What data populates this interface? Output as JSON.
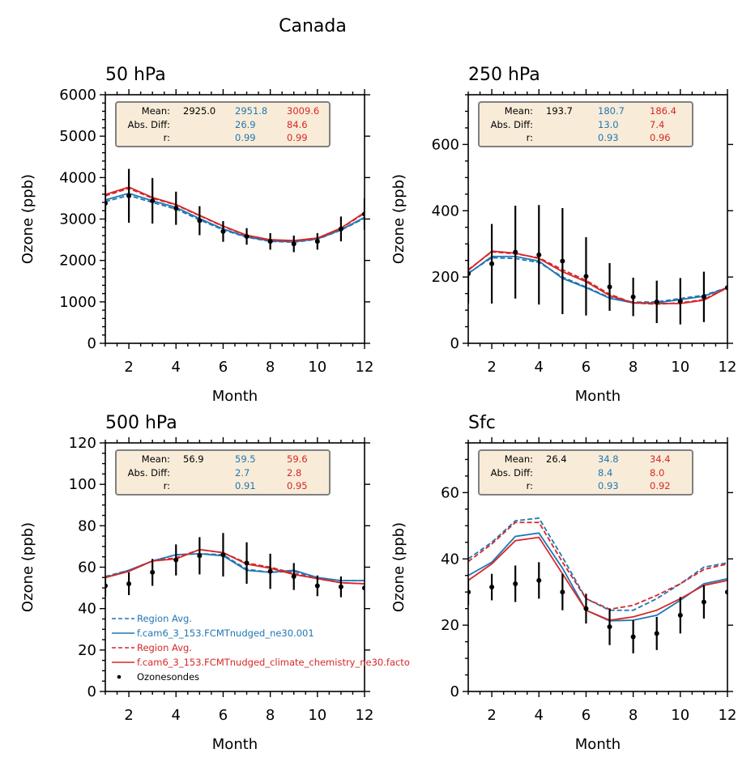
{
  "chart_data": {
    "type": "line",
    "suptitle": "Canada",
    "colors": {
      "model1": "#1f77b4",
      "model2": "#d62728",
      "obs": "#000000",
      "statbox_bg": "#f8ecd8",
      "statbox_edge": "#808080"
    },
    "legend": {
      "placement": "lower-left (500 hPa panel)",
      "entries": [
        {
          "label": "Region Avg.",
          "color": "#1f77b4",
          "style": "dashed"
        },
        {
          "label": "f.cam6_3_153.FCMTnudged_ne30.001",
          "color": "#1f77b4",
          "style": "solid"
        },
        {
          "label": "Region Avg.",
          "color": "#d62728",
          "style": "dashed"
        },
        {
          "label": "f.cam6_3_153.FCMTnudged_climate_chemistry_ne30.facto",
          "color": "#d62728",
          "style": "solid"
        },
        {
          "label": "Ozonesondes",
          "color": "#000000",
          "style": "marker"
        }
      ]
    },
    "panels": [
      {
        "title": "50 hPa",
        "xlabel": "Month",
        "ylabel": "Ozone (ppb)",
        "xlim": [
          1,
          12
        ],
        "ylim": [
          0,
          6000
        ],
        "xticks": [
          2,
          4,
          6,
          8,
          10,
          12
        ],
        "yticks": [
          0,
          1000,
          2000,
          3000,
          4000,
          5000,
          6000
        ],
        "yminor": 200,
        "stats": {
          "labels": [
            "Mean:",
            "Abs. Diff:",
            "r:"
          ],
          "obs": [
            "2925.0",
            "",
            ""
          ],
          "model1": [
            "2951.8",
            "26.9",
            "0.99"
          ],
          "model2": [
            "3009.6",
            "84.6",
            "0.99"
          ]
        },
        "x": [
          1,
          2,
          3,
          4,
          5,
          6,
          7,
          8,
          9,
          10,
          11,
          12
        ],
        "series": [
          {
            "name": "model1 Region Avg.",
            "style": "dashed",
            "color": "#1f77b4",
            "values": [
              3420,
              3570,
              3400,
              3240,
              2980,
              2740,
              2560,
              2460,
              2440,
              2510,
              2730,
              3020
            ]
          },
          {
            "name": "model1",
            "style": "solid",
            "color": "#1f77b4",
            "values": [
              3460,
              3620,
              3440,
              3280,
              3010,
              2760,
              2570,
              2470,
              2450,
              2520,
              2740,
              3040
            ]
          },
          {
            "name": "model2 Region Avg.",
            "style": "dashed",
            "color": "#d62728",
            "values": [
              3560,
              3740,
              3500,
              3340,
              3080,
              2820,
              2600,
              2490,
              2470,
              2530,
              2770,
              3140
            ]
          },
          {
            "name": "model2",
            "style": "solid",
            "color": "#d62728",
            "values": [
              3590,
              3770,
              3520,
              3350,
              3090,
              2830,
              2610,
              2500,
              2480,
              2540,
              2780,
              3160
            ]
          }
        ],
        "obs": {
          "values": [
            3380,
            3560,
            3440,
            3260,
            2960,
            2700,
            2580,
            2460,
            2400,
            2460,
            2760,
            3120
          ],
          "err": [
            450,
            650,
            550,
            400,
            350,
            250,
            200,
            200,
            200,
            200,
            300,
            380
          ]
        }
      },
      {
        "title": "250 hPa",
        "xlabel": "Month",
        "ylabel": "Ozone (ppb)",
        "xlim": [
          1,
          12
        ],
        "ylim": [
          0,
          750
        ],
        "xticks": [
          2,
          4,
          6,
          8,
          10,
          12
        ],
        "yticks": [
          0,
          200,
          400,
          600
        ],
        "yminor": 50,
        "stats": {
          "labels": [
            "Mean:",
            "Abs. Diff:",
            "r:"
          ],
          "obs": [
            "193.7",
            "",
            ""
          ],
          "model1": [
            "180.7",
            "13.0",
            "0.93"
          ],
          "model2": [
            "186.4",
            "7.4",
            "0.96"
          ]
        },
        "x": [
          1,
          2,
          3,
          4,
          5,
          6,
          7,
          8,
          9,
          10,
          11,
          12
        ],
        "series": [
          {
            "name": "model1 Region Avg.",
            "style": "dashed",
            "color": "#1f77b4",
            "values": [
              212,
              258,
              256,
              244,
              200,
              170,
              138,
              124,
              125,
              135,
              145,
              168
            ]
          },
          {
            "name": "model1",
            "style": "solid",
            "color": "#1f77b4",
            "values": [
              210,
              262,
              262,
              248,
              196,
              168,
              136,
              122,
              122,
              132,
              142,
              168
            ]
          },
          {
            "name": "model2 Region Avg.",
            "style": "dashed",
            "color": "#d62728",
            "values": [
              222,
              276,
              270,
              258,
              222,
              190,
              148,
              122,
              118,
              122,
              132,
              170
            ]
          },
          {
            "name": "model2",
            "style": "solid",
            "color": "#d62728",
            "values": [
              220,
              278,
              272,
              256,
              216,
              186,
              144,
              122,
              120,
              120,
              130,
              168
            ]
          }
        ],
        "obs": {
          "values": [
            210,
            240,
            275,
            267,
            248,
            202,
            170,
            140,
            125,
            127,
            140,
            168
          ],
          "err": [
            90,
            120,
            140,
            150,
            160,
            118,
            72,
            58,
            64,
            70,
            76,
            0
          ]
        }
      },
      {
        "title": "500 hPa",
        "xlabel": "Month",
        "ylabel": "Ozone (ppb)",
        "xlim": [
          1,
          12
        ],
        "ylim": [
          0,
          120
        ],
        "xticks": [
          2,
          4,
          6,
          8,
          10,
          12
        ],
        "yticks": [
          0,
          20,
          40,
          60,
          80,
          100,
          120
        ],
        "yminor": 5,
        "stats": {
          "labels": [
            "Mean:",
            "Abs. Diff:",
            "r:"
          ],
          "obs": [
            "56.9",
            "",
            ""
          ],
          "model1": [
            "59.5",
            "2.7",
            "0.91"
          ],
          "model2": [
            "59.6",
            "2.8",
            "0.95"
          ]
        },
        "x": [
          1,
          2,
          3,
          4,
          5,
          6,
          7,
          8,
          9,
          10,
          11,
          12
        ],
        "series": [
          {
            "name": "model1 Region Avg.",
            "style": "dashed",
            "color": "#1f77b4",
            "values": [
              55.5,
              58.5,
              63,
              66,
              66.5,
              66,
              59,
              57.5,
              58,
              55,
              53.5,
              53.5
            ]
          },
          {
            "name": "model1",
            "style": "solid",
            "color": "#1f77b4",
            "values": [
              55,
              58.5,
              63,
              66,
              66.5,
              65.5,
              58.5,
              57.5,
              58.5,
              55,
              53.5,
              53.5
            ]
          },
          {
            "name": "model2 Region Avg.",
            "style": "dashed",
            "color": "#d62728",
            "values": [
              55,
              58,
              63,
              64.5,
              68.5,
              67,
              62,
              60,
              57,
              54.5,
              52.5,
              52
            ]
          },
          {
            "name": "model2",
            "style": "solid",
            "color": "#d62728",
            "values": [
              55,
              58,
              63,
              64,
              68.5,
              67,
              61.5,
              59.5,
              56.5,
              54.5,
              52.5,
              52
            ]
          }
        ],
        "obs": {
          "values": [
            51,
            52,
            57.5,
            63.5,
            65.5,
            66,
            62,
            58,
            55.5,
            51,
            50.5,
            50
          ],
          "err": [
            5,
            5.5,
            6.5,
            7.5,
            9,
            10.5,
            10,
            8.5,
            6.5,
            5,
            5,
            0
          ]
        }
      },
      {
        "title": "Sfc",
        "xlabel": "Month",
        "ylabel": "Ozone (ppb)",
        "xlim": [
          1,
          12
        ],
        "ylim": [
          0,
          75
        ],
        "xticks": [
          2,
          4,
          6,
          8,
          10,
          12
        ],
        "yticks": [
          0,
          20,
          40,
          60
        ],
        "yminor": 5,
        "stats": {
          "labels": [
            "Mean:",
            "Abs. Diff:",
            "r:"
          ],
          "obs": [
            "26.4",
            "",
            ""
          ],
          "model1": [
            "34.8",
            "8.4",
            "0.93"
          ],
          "model2": [
            "34.4",
            "8.0",
            "0.92"
          ]
        },
        "x": [
          1,
          2,
          3,
          4,
          5,
          6,
          7,
          8,
          9,
          10,
          11,
          12
        ],
        "series": [
          {
            "name": "model1 Region Avg.",
            "style": "dashed",
            "color": "#1f77b4",
            "values": [
              40,
              45,
              51.5,
              52.3,
              40.5,
              28,
              24.5,
              24.5,
              28,
              32.5,
              37.5,
              38.8
            ]
          },
          {
            "name": "model1",
            "style": "solid",
            "color": "#1f77b4",
            "values": [
              35,
              39,
              46.8,
              47.8,
              37.2,
              24.5,
              21.3,
              21.5,
              23,
              27.5,
              32.5,
              34
            ]
          },
          {
            "name": "model2 Region Avg.",
            "style": "dashed",
            "color": "#d62728",
            "values": [
              39.2,
              44.5,
              51,
              51,
              39,
              28,
              24.8,
              26,
              29,
              32.5,
              36.8,
              38.5
            ]
          },
          {
            "name": "model2",
            "style": "solid",
            "color": "#d62728",
            "values": [
              33.5,
              38.5,
              45.5,
              46.5,
              35.5,
              24.5,
              21.5,
              22.5,
              24.5,
              28,
              32,
              33.5
            ]
          }
        ],
        "obs": {
          "values": [
            30,
            31.5,
            32.5,
            33.5,
            30,
            25,
            19.5,
            16.5,
            17.5,
            23,
            27,
            30
          ],
          "err": [
            4,
            4,
            5.5,
            5.5,
            5.5,
            4.5,
            5.5,
            5,
            5,
            5.5,
            5,
            0
          ]
        }
      }
    ]
  }
}
